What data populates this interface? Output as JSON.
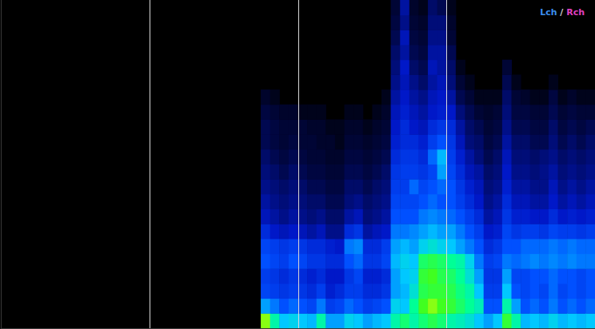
{
  "chart_data": {
    "type": "heatmap",
    "xlim": [
      0,
      4
    ],
    "xticks": [
      1,
      2,
      3
    ],
    "ylim": [
      0,
      22
    ],
    "yticks": [],
    "tick_labels": false,
    "grid": true,
    "cell_width": 0.0625,
    "cell_height": 1,
    "zlim": [
      0,
      100
    ],
    "x": [
      1.75,
      1.8125,
      1.875,
      1.9375,
      2,
      2.0625,
      2.125,
      2.1875,
      2.25,
      2.3125,
      2.375,
      2.4375,
      2.5,
      2.5625,
      2.625,
      2.6875,
      2.75,
      2.8125,
      2.875,
      2.9375,
      3,
      3.0625,
      3.125,
      3.1875,
      3.25,
      3.3125,
      3.375,
      3.4375,
      3.5,
      3.5625,
      3.625,
      3.6875,
      3.75,
      3.8125,
      3.875,
      3.9375
    ],
    "y": [
      0,
      1,
      2,
      3,
      4,
      5,
      6,
      7,
      8,
      9,
      10,
      11,
      12,
      13,
      14,
      15,
      16,
      17,
      18,
      19,
      20,
      21
    ],
    "cells": [
      [
        85,
        55,
        42,
        40,
        45,
        42,
        35,
        28,
        25,
        22,
        20,
        18,
        15,
        15,
        12,
        8,
        0,
        0,
        0,
        0,
        0,
        0
      ],
      [
        70,
        50,
        40,
        38,
        42,
        40,
        30,
        25,
        22,
        20,
        18,
        15,
        12,
        12,
        10,
        5,
        0,
        0,
        0,
        0,
        0,
        0
      ],
      [
        60,
        45,
        38,
        35,
        40,
        38,
        28,
        22,
        20,
        18,
        15,
        12,
        10,
        10,
        8,
        0,
        0,
        0,
        0,
        0,
        0,
        0
      ],
      [
        62,
        48,
        40,
        38,
        45,
        40,
        30,
        25,
        22,
        20,
        18,
        15,
        12,
        10,
        8,
        0,
        0,
        0,
        0,
        0,
        0,
        0
      ],
      [
        60,
        45,
        38,
        35,
        42,
        38,
        28,
        22,
        20,
        18,
        15,
        12,
        10,
        10,
        5,
        0,
        0,
        0,
        0,
        0,
        0,
        0
      ],
      [
        58,
        42,
        35,
        32,
        38,
        35,
        25,
        20,
        18,
        15,
        12,
        10,
        10,
        8,
        5,
        0,
        0,
        0,
        0,
        0,
        0,
        0
      ],
      [
        70,
        50,
        40,
        35,
        38,
        35,
        28,
        22,
        18,
        15,
        12,
        10,
        8,
        8,
        5,
        0,
        0,
        0,
        0,
        0,
        0,
        0
      ],
      [
        55,
        40,
        32,
        30,
        35,
        32,
        22,
        18,
        15,
        12,
        10,
        8,
        8,
        5,
        0,
        0,
        0,
        0,
        0,
        0,
        0,
        0
      ],
      [
        55,
        42,
        35,
        30,
        35,
        30,
        22,
        18,
        15,
        12,
        10,
        8,
        5,
        5,
        0,
        0,
        0,
        0,
        0,
        0,
        0,
        0
      ],
      [
        62,
        48,
        40,
        38,
        45,
        50,
        35,
        25,
        20,
        18,
        15,
        12,
        10,
        8,
        5,
        0,
        0,
        0,
        0,
        0,
        0,
        0
      ],
      [
        60,
        45,
        40,
        42,
        48,
        52,
        38,
        28,
        22,
        18,
        15,
        12,
        10,
        8,
        5,
        0,
        0,
        0,
        0,
        0,
        0,
        0
      ],
      [
        55,
        40,
        35,
        32,
        38,
        35,
        25,
        20,
        18,
        15,
        12,
        10,
        8,
        5,
        0,
        0,
        0,
        0,
        0,
        0,
        0,
        0
      ],
      [
        58,
        42,
        35,
        32,
        38,
        35,
        28,
        22,
        20,
        18,
        15,
        12,
        10,
        8,
        5,
        0,
        0,
        0,
        0,
        0,
        0,
        0
      ],
      [
        60,
        45,
        38,
        35,
        42,
        40,
        30,
        25,
        22,
        20,
        18,
        15,
        12,
        10,
        8,
        5,
        0,
        0,
        0,
        0,
        0,
        0
      ],
      [
        70,
        62,
        55,
        55,
        58,
        55,
        50,
        45,
        42,
        40,
        38,
        35,
        32,
        30,
        28,
        25,
        22,
        20,
        18,
        15,
        12,
        10
      ],
      [
        75,
        60,
        58,
        60,
        62,
        58,
        50,
        45,
        42,
        40,
        40,
        38,
        35,
        35,
        32,
        30,
        28,
        30,
        25,
        28,
        22,
        25
      ],
      [
        70,
        72,
        65,
        62,
        60,
        55,
        52,
        45,
        42,
        48,
        40,
        38,
        35,
        30,
        28,
        25,
        22,
        18,
        15,
        12,
        10,
        8
      ],
      [
        75,
        82,
        78,
        80,
        76,
        62,
        55,
        50,
        45,
        42,
        38,
        35,
        32,
        28,
        25,
        22,
        18,
        15,
        12,
        10,
        8,
        5
      ],
      [
        78,
        85,
        80,
        82,
        78,
        65,
        58,
        52,
        48,
        45,
        42,
        48,
        40,
        35,
        30,
        28,
        25,
        28,
        25,
        22,
        20,
        18
      ],
      [
        75,
        82,
        80,
        78,
        76,
        62,
        55,
        50,
        45,
        48,
        55,
        58,
        45,
        38,
        32,
        30,
        28,
        25,
        25,
        22,
        20,
        15
      ],
      [
        70,
        80,
        78,
        76,
        72,
        60,
        55,
        48,
        45,
        45,
        42,
        40,
        38,
        35,
        30,
        25,
        20,
        18,
        15,
        10,
        8,
        5
      ],
      [
        68,
        76,
        74,
        72,
        70,
        55,
        50,
        45,
        40,
        38,
        35,
        32,
        28,
        25,
        20,
        15,
        10,
        5,
        0,
        0,
        0,
        0
      ],
      [
        65,
        72,
        70,
        65,
        62,
        50,
        45,
        40,
        35,
        32,
        28,
        25,
        20,
        18,
        15,
        10,
        5,
        0,
        0,
        0,
        0,
        0
      ],
      [
        60,
        68,
        60,
        55,
        50,
        45,
        40,
        35,
        30,
        28,
        25,
        20,
        18,
        15,
        10,
        5,
        0,
        0,
        0,
        0,
        0,
        0
      ],
      [
        55,
        45,
        40,
        38,
        40,
        35,
        30,
        25,
        22,
        20,
        18,
        15,
        12,
        10,
        8,
        5,
        0,
        0,
        0,
        0,
        0,
        0
      ],
      [
        60,
        45,
        40,
        38,
        42,
        38,
        32,
        28,
        25,
        22,
        20,
        18,
        15,
        12,
        10,
        5,
        0,
        0,
        0,
        0,
        0,
        0
      ],
      [
        80,
        70,
        60,
        55,
        50,
        45,
        42,
        38,
        35,
        32,
        30,
        28,
        25,
        22,
        20,
        18,
        15,
        10,
        0,
        0,
        0,
        0
      ],
      [
        70,
        55,
        45,
        42,
        48,
        45,
        38,
        32,
        28,
        25,
        22,
        20,
        18,
        15,
        12,
        10,
        5,
        0,
        0,
        0,
        0,
        0
      ],
      [
        58,
        45,
        42,
        42,
        50,
        48,
        40,
        32,
        28,
        25,
        22,
        20,
        18,
        15,
        12,
        8,
        0,
        0,
        0,
        0,
        0,
        0
      ],
      [
        60,
        48,
        45,
        45,
        52,
        48,
        40,
        30,
        25,
        22,
        20,
        18,
        15,
        12,
        10,
        5,
        0,
        0,
        0,
        0,
        0,
        0
      ],
      [
        58,
        45,
        42,
        45,
        50,
        48,
        38,
        30,
        25,
        22,
        22,
        20,
        15,
        12,
        10,
        5,
        0,
        0,
        0,
        0,
        0,
        0
      ],
      [
        62,
        50,
        48,
        48,
        52,
        50,
        42,
        35,
        30,
        28,
        25,
        22,
        20,
        18,
        15,
        12,
        5,
        0,
        0,
        0,
        0,
        0
      ],
      [
        58,
        45,
        42,
        45,
        50,
        48,
        40,
        30,
        25,
        22,
        20,
        18,
        15,
        12,
        10,
        5,
        0,
        0,
        0,
        0,
        0,
        0
      ],
      [
        60,
        48,
        45,
        45,
        52,
        50,
        40,
        32,
        28,
        25,
        22,
        20,
        18,
        15,
        12,
        8,
        0,
        0,
        0,
        0,
        0,
        0
      ],
      [
        58,
        45,
        42,
        42,
        50,
        48,
        38,
        30,
        25,
        22,
        20,
        18,
        15,
        12,
        10,
        5,
        0,
        0,
        0,
        0,
        0,
        0
      ],
      [
        60,
        48,
        45,
        45,
        50,
        48,
        40,
        32,
        28,
        25,
        22,
        20,
        18,
        15,
        10,
        5,
        0,
        0,
        0,
        0,
        0,
        0
      ]
    ],
    "annotations": [
      {
        "text": "Lch",
        "color": "#3b8ff0"
      },
      {
        "text": "/",
        "color": "#d0d0d0"
      },
      {
        "text": "Rch",
        "color": "#e040c0"
      }
    ]
  }
}
